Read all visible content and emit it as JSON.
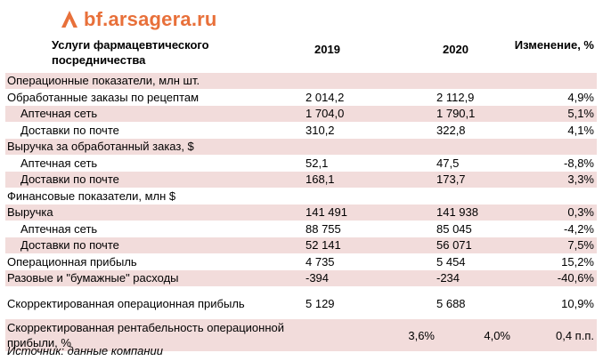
{
  "brand": {
    "logo_text": "bf.arsagera.ru",
    "accent_color": "#e8703a",
    "row_shade_color": "#f2dcdb"
  },
  "header": {
    "metric_label": "Услуги фармацевтического посредничества",
    "col_2019": "2019",
    "col_2020": "2020",
    "col_change": "Изменение, %"
  },
  "rows": [
    {
      "label": "Операционные показатели, млн шт.",
      "v2019": "",
      "v2020": "",
      "change": ""
    },
    {
      "label": "Обработанные заказы по рецептам",
      "v2019": "2 014,2",
      "v2020": "2 112,9",
      "change": "4,9%"
    },
    {
      "label": "Аптечная сеть",
      "v2019": "1 704,0",
      "v2020": "1 790,1",
      "change": "5,1%"
    },
    {
      "label": "Доставки по почте",
      "v2019": "310,2",
      "v2020": "322,8",
      "change": "4,1%"
    },
    {
      "label": "Выручка за обработанный заказ, $",
      "v2019": "",
      "v2020": "",
      "change": ""
    },
    {
      "label": "Аптечная сеть",
      "v2019": "52,1",
      "v2020": "47,5",
      "change": "-8,8%"
    },
    {
      "label": "Доставки по почте",
      "v2019": "168,1",
      "v2020": "173,7",
      "change": "3,3%"
    },
    {
      "label": "Финансовые показатели, млн $",
      "v2019": "",
      "v2020": "",
      "change": ""
    },
    {
      "label": "Выручка",
      "v2019": "141 491",
      "v2020": "141 938",
      "change": "0,3%"
    },
    {
      "label": "Аптечная сеть",
      "v2019": "88 755",
      "v2020": "85 045",
      "change": "-4,2%"
    },
    {
      "label": "Доставки по почте",
      "v2019": "52 141",
      "v2020": "56 071",
      "change": "7,5%"
    },
    {
      "label": "Операционная прибыль",
      "v2019": "4 735",
      "v2020": "5 454",
      "change": "15,2%"
    },
    {
      "label": "Разовые и \"бумажные\" расходы",
      "v2019": "-394",
      "v2020": "-234",
      "change": "-40,6%"
    },
    {
      "label": "Скорректированная операционная прибыль",
      "v2019": "5 129",
      "v2020": "5 688",
      "change": "10,9%"
    },
    {
      "label": "Скорректированная рентабельность операционной прибыли, %",
      "v2019": "3,6%",
      "v2020": "4,0%",
      "change": "0,4 п.п."
    }
  ],
  "footer": {
    "source": "Источник: данные компании"
  }
}
